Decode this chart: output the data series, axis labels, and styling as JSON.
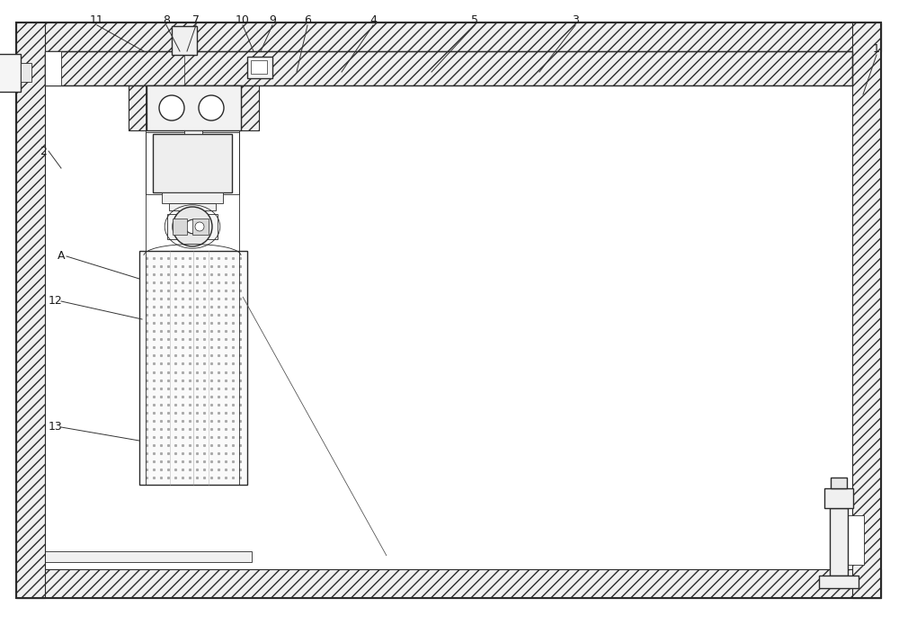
{
  "bg_color": "#ffffff",
  "line_color": "#2a2a2a",
  "label_color": "#1a1a1a",
  "fig_width": 10.0,
  "fig_height": 7.05
}
